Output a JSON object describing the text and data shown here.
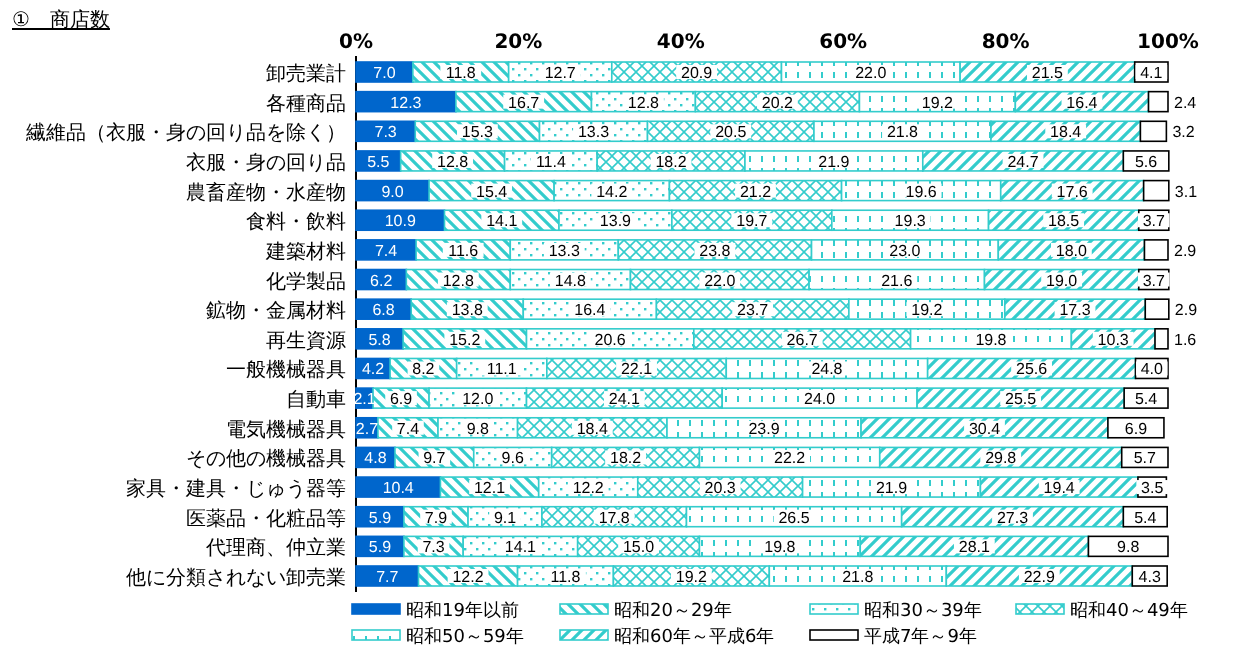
{
  "chart_data": {
    "type": "bar",
    "orientation": "horizontal",
    "stacked": true,
    "title": "①　商店数",
    "categories": [
      "卸売業計",
      "各種商品",
      "繊維品（衣服・身の回り品を除く）",
      "衣服・身の回り品",
      "農畜産物・水産物",
      "食料・飲料",
      "建築材料",
      "化学製品",
      "鉱物・金属材料",
      "再生資源",
      "一般機械器具",
      "自動車",
      "電気機械器具",
      "その他の機械器具",
      "家具・建具・じゅう器等",
      "医薬品・化粧品等",
      "代理商、仲立業",
      "他に分類されない卸売業"
    ],
    "series": [
      {
        "name": "昭和19年以前",
        "color": "#0066cc",
        "values": [
          7.0,
          12.3,
          7.3,
          5.5,
          9.0,
          10.9,
          7.4,
          6.2,
          6.8,
          5.8,
          4.2,
          2.1,
          2.7,
          4.8,
          10.4,
          5.9,
          5.9,
          7.7
        ],
        "value_labels": [
          "7.0",
          "12.3",
          "7.3",
          "5.5",
          "9.0",
          "10.9",
          "7.4",
          "6.2",
          "6.8",
          "5.8",
          "4.2",
          "2.1",
          "2.7",
          "4.8",
          "10.4",
          "5.9",
          "5.9",
          "7.7"
        ]
      },
      {
        "name": "昭和20～29年",
        "color": "#33cccc",
        "values": [
          11.8,
          16.7,
          15.3,
          12.8,
          15.4,
          14.1,
          11.6,
          12.8,
          13.8,
          15.2,
          8.2,
          6.9,
          7.4,
          9.7,
          12.1,
          7.9,
          7.3,
          12.2
        ],
        "value_labels": [
          "11.8",
          "16.7",
          "15.3",
          "12.8",
          "15.4",
          "14.1",
          "11.6",
          "12.8",
          "13.8",
          "15.2",
          "8.2",
          "6.9",
          "7.4",
          "9.7",
          "12.1",
          "7.9",
          "7.3",
          "12.2"
        ]
      },
      {
        "name": "昭和30～39年",
        "color": "#33cccc",
        "values": [
          12.7,
          12.8,
          13.3,
          11.4,
          14.2,
          13.9,
          13.3,
          14.8,
          16.4,
          20.6,
          11.1,
          12.0,
          9.8,
          9.6,
          12.2,
          9.1,
          14.1,
          11.8
        ],
        "value_labels": [
          "12.7",
          "12.8",
          "13.3",
          "11.4",
          "14.2",
          "13.9",
          "13.3",
          "14.8",
          "16.4",
          "20.6",
          "11.1",
          "12.0",
          "9.8",
          "9.6",
          "12.2",
          "9.1",
          "14.1",
          "11.8"
        ]
      },
      {
        "name": "昭和40～49年",
        "color": "#33cccc",
        "values": [
          20.9,
          20.2,
          20.5,
          18.2,
          21.2,
          19.7,
          23.8,
          22.0,
          23.7,
          26.7,
          22.1,
          24.1,
          18.4,
          18.2,
          20.3,
          17.8,
          15.0,
          19.2
        ],
        "value_labels": [
          "20.9",
          "20.2",
          "20.5",
          "18.2",
          "21.2",
          "19.7",
          "23.8",
          "22.0",
          "23.7",
          "26.7",
          "22.1",
          "24.1",
          "18.4",
          "18.2",
          "20.3",
          "17.8",
          "15.0",
          "19.2"
        ]
      },
      {
        "name": "昭和50～59年",
        "color": "#33cccc",
        "values": [
          22.0,
          19.2,
          21.8,
          21.9,
          19.6,
          19.3,
          23.0,
          21.6,
          19.2,
          19.8,
          24.8,
          24.0,
          23.9,
          22.2,
          21.9,
          26.5,
          19.8,
          21.8
        ],
        "value_labels": [
          "22.0",
          "19.2",
          "21.8",
          "21.9",
          "19.6",
          "19.3",
          "23.0",
          "21.6",
          "19.2",
          "19.8",
          "24.8",
          "24.0",
          "23.9",
          "22.2",
          "21.9",
          "26.5",
          "19.8",
          "21.8"
        ]
      },
      {
        "name": "昭和60年～平成6年",
        "color": "#33cccc",
        "values": [
          21.5,
          16.4,
          18.4,
          24.7,
          17.6,
          18.5,
          18.0,
          19.0,
          17.3,
          10.3,
          25.6,
          25.5,
          30.4,
          29.8,
          19.4,
          27.3,
          28.1,
          22.9
        ],
        "value_labels": [
          "21.5",
          "16.4",
          "18.4",
          "24.7",
          "17.6",
          "18.5",
          "18.0",
          "19.0",
          "17.3",
          "10.3",
          "25.6",
          "25.5",
          "30.4",
          "29.8",
          "19.4",
          "27.3",
          "28.1",
          "22.9"
        ]
      },
      {
        "name": "平成7年～9年",
        "color": "#ffffff",
        "values": [
          4.1,
          2.4,
          3.2,
          5.6,
          3.1,
          3.7,
          2.9,
          3.7,
          2.9,
          1.6,
          4.0,
          5.4,
          6.9,
          5.7,
          3.5,
          5.4,
          9.8,
          4.3
        ],
        "value_labels": [
          "4.1",
          "2.4",
          "3.2",
          "5.6",
          "3.1",
          "3.7",
          "2.9",
          "3.7",
          "2.9",
          "1.6",
          "4.0",
          "5.4",
          "6.9",
          "5.7",
          "3.5",
          "5.4",
          "9.8",
          "4.3"
        ]
      }
    ],
    "xlim": [
      0,
      100
    ],
    "xticks": [
      {
        "value": 0,
        "label": "0%"
      },
      {
        "value": 20,
        "label": "20%"
      },
      {
        "value": 40,
        "label": "40%"
      },
      {
        "value": 60,
        "label": "60%"
      },
      {
        "value": 80,
        "label": "80%"
      },
      {
        "value": 100,
        "label": "100%"
      }
    ],
    "legend": "bottom"
  }
}
